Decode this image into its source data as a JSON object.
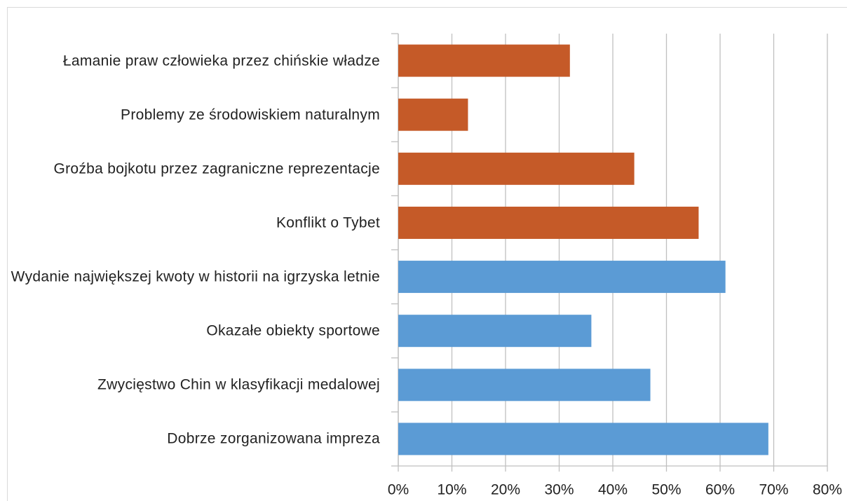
{
  "chart_data": {
    "type": "bar",
    "orientation": "horizontal",
    "categories": [
      "Łamanie praw człowieka przez chińskie władze",
      "Problemy ze środowiskiem naturalnym",
      "Groźba bojkotu przez zagraniczne reprezentacje",
      "Konflikt o Tybet",
      "Wydanie największej kwoty w historii na igrzyska letnie",
      "Okazałe obiekty sportowe",
      "Zwycięstwo Chin w klasyfikacji medalowej",
      "Dobrze zorganizowana impreza"
    ],
    "values": [
      32,
      13,
      44,
      56,
      61,
      36,
      47,
      69
    ],
    "colors": [
      "#c55a28",
      "#c55a28",
      "#c55a28",
      "#c55a28",
      "#5b9bd5",
      "#5b9bd5",
      "#5b9bd5",
      "#5b9bd5"
    ],
    "xlim": [
      0,
      80
    ],
    "xticks": [
      {
        "value": 0,
        "label": "0%"
      },
      {
        "value": 10,
        "label": "10%"
      },
      {
        "value": 20,
        "label": "20%"
      },
      {
        "value": 30,
        "label": "30%"
      },
      {
        "value": 40,
        "label": "40%"
      },
      {
        "value": 50,
        "label": "50%"
      },
      {
        "value": 60,
        "label": "60%"
      },
      {
        "value": 70,
        "label": "70%"
      },
      {
        "value": 80,
        "label": "80%"
      }
    ],
    "grid": true
  }
}
